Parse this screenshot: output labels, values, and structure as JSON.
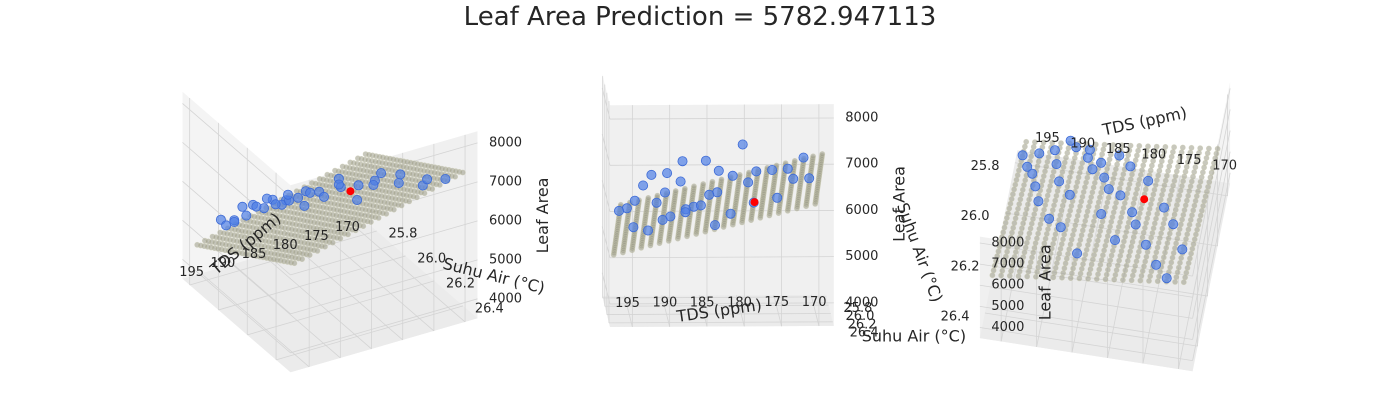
{
  "chart_data": {
    "type": "scatter",
    "title": "Leaf Area Prediction = 5782.947113",
    "xlabel": "Suhu Air (°C)",
    "ylabel": "TDS (ppm)",
    "zlabel": "Leaf Area",
    "xlim": [
      25.75,
      26.5
    ],
    "ylim": [
      168,
      198
    ],
    "zlim": [
      3500,
      8300
    ],
    "x_ticks": [
      "26.4",
      "26.2",
      "26.0",
      "25.8"
    ],
    "y_ticks": [
      "170",
      "175",
      "180",
      "185",
      "190",
      "195"
    ],
    "z_ticks": [
      "4000",
      "5000",
      "6000",
      "7000",
      "8000"
    ],
    "colors": {
      "observed": "#4f7fe6",
      "plane": "#9a9a86",
      "prediction": "#ff0000",
      "pane": "#f2f2f2",
      "grid": "#d4d4d4"
    },
    "plane": {
      "z0": 5782.947113,
      "slope_x": 2500,
      "slope_y": -40,
      "x_ref": 26.1,
      "y_ref": 182
    },
    "prediction_point": {
      "x": 26.05,
      "y": 178,
      "z": 5782.947113
    },
    "series": [
      {
        "points": [
          [
            26.45,
            172,
            7100
          ],
          [
            26.38,
            174,
            6800
          ],
          [
            26.3,
            176,
            6700
          ],
          [
            26.22,
            178,
            6600
          ],
          [
            26.15,
            179,
            6300
          ],
          [
            26.1,
            181,
            6400
          ],
          [
            26.05,
            183,
            6000
          ],
          [
            26.0,
            184,
            5900
          ],
          [
            25.95,
            186,
            5600
          ],
          [
            25.9,
            187,
            5500
          ],
          [
            25.85,
            189,
            5300
          ],
          [
            25.82,
            190,
            5200
          ],
          [
            26.4,
            185,
            7000
          ],
          [
            26.3,
            188,
            6900
          ],
          [
            26.25,
            190,
            6600
          ],
          [
            26.18,
            192,
            6500
          ],
          [
            26.1,
            193,
            6200
          ],
          [
            26.02,
            194,
            5800
          ],
          [
            25.98,
            195,
            5600
          ],
          [
            25.93,
            196,
            5500
          ],
          [
            25.88,
            194,
            5100
          ],
          [
            25.85,
            192,
            5000
          ],
          [
            26.35,
            180,
            7300
          ],
          [
            26.2,
            183,
            6600
          ],
          [
            26.08,
            175,
            5900
          ],
          [
            25.97,
            178,
            5700
          ],
          [
            25.9,
            181,
            5400
          ],
          [
            25.84,
            183,
            5100
          ],
          [
            26.12,
            188,
            6300
          ],
          [
            26.05,
            190,
            6000
          ],
          [
            25.96,
            191,
            5700
          ],
          [
            25.92,
            185,
            5600
          ],
          [
            25.86,
            187,
            5400
          ],
          [
            26.28,
            171,
            6500
          ],
          [
            26.18,
            173,
            6400
          ]
        ]
      }
    ]
  },
  "panels": [
    {
      "az": -60,
      "elev": 30
    },
    {
      "az": -88,
      "elev": 8
    },
    {
      "az": -100,
      "elev": 62
    }
  ]
}
